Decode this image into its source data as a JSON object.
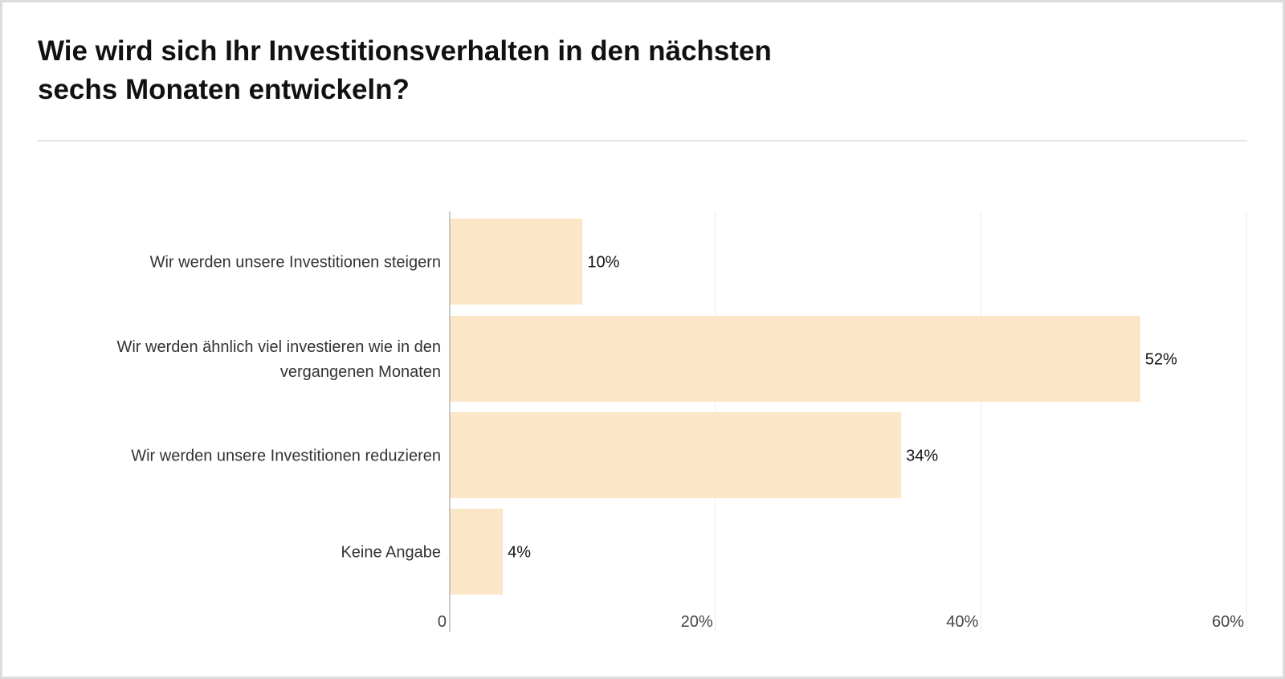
{
  "title_line1": "Wie wird sich Ihr Investitionsverhalten in den nächsten",
  "title_line2": "sechs Monaten entwickeln?",
  "chart_data": {
    "type": "bar",
    "orientation": "horizontal",
    "title": "Wie wird sich Ihr Investitionsverhalten in den nächsten sechs Monaten entwickeln?",
    "categories": [
      [
        "Wir werden unsere Investitionen steigern"
      ],
      [
        "Wir werden ähnlich viel investieren wie in den",
        "vergangenen Monaten"
      ],
      [
        "Wir werden unsere Investitionen reduzieren"
      ],
      [
        "Keine Angabe"
      ]
    ],
    "values": [
      10,
      52,
      34,
      4
    ],
    "value_labels": [
      "10%",
      "52%",
      "34%",
      "4%"
    ],
    "xlim": [
      0,
      60
    ],
    "xticks": [
      0,
      20,
      40,
      60
    ],
    "xtick_labels": [
      "0",
      "20%",
      "40%",
      "60%"
    ],
    "grid": true,
    "bar_color": "#fce6c8",
    "xlabel": "",
    "ylabel": ""
  }
}
